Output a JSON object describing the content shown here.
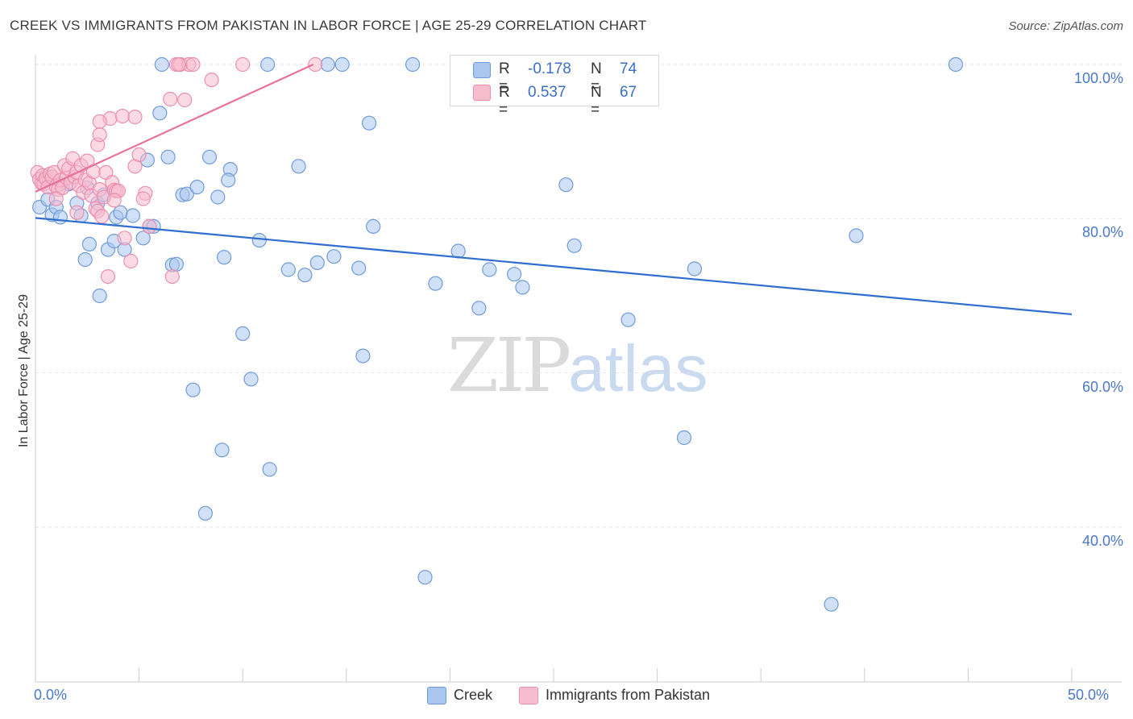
{
  "header": {
    "title": "CREEK VS IMMIGRANTS FROM PAKISTAN IN LABOR FORCE | AGE 25-29 CORRELATION CHART",
    "source": "Source: ZipAtlas.com"
  },
  "watermark": {
    "zip": "ZIP",
    "atlas": "atlas"
  },
  "legend": {
    "creek": {
      "r_label": "R =",
      "r_value": "-0.178",
      "n_label": "N =",
      "n_value": "74"
    },
    "pakistan": {
      "r_label": "R =",
      "r_value": "0.537",
      "n_label": "N =",
      "n_value": "67"
    }
  },
  "bottom_legend": {
    "creek": "Creek",
    "pakistan": "Immigrants from Pakistan"
  },
  "colors": {
    "creek_fill": "#a9c6ef",
    "creek_stroke": "#6f9bd9",
    "creek_line": "#2f6ecf",
    "pak_fill": "#f7bccd",
    "pak_stroke": "#ec8fae",
    "pak_line": "#e8709a",
    "grid": "#e4e4e4",
    "axis_text": "#4a78c8"
  },
  "chart_data": {
    "type": "scatter",
    "title": "CREEK VS IMMIGRANTS FROM PAKISTAN IN LABOR FORCE | AGE 25-29 CORRELATION CHART",
    "xlabel": "",
    "ylabel": "In Labor Force | Age 25-29",
    "xlim": [
      0,
      50
    ],
    "ylim": [
      20,
      102
    ],
    "x_ticks": [
      "0.0%",
      "50.0%"
    ],
    "y_ticks": [
      {
        "value": 100,
        "label": "100.0%"
      },
      {
        "value": 80,
        "label": "80.0%"
      },
      {
        "value": 60,
        "label": "60.0%"
      },
      {
        "value": 40,
        "label": "40.0%"
      }
    ],
    "series": [
      {
        "name": "Creek",
        "r": -0.178,
        "n": 74,
        "trend": {
          "x": [
            0,
            50
          ],
          "y": [
            80.1,
            67.6
          ]
        },
        "points": [
          [
            0.2,
            81.5
          ],
          [
            0.6,
            82.5
          ],
          [
            0.8,
            80.5
          ],
          [
            1.0,
            81.5
          ],
          [
            1.2,
            80.2
          ],
          [
            1.6,
            84.5
          ],
          [
            2.0,
            82.0
          ],
          [
            2.2,
            80.4
          ],
          [
            2.4,
            74.7
          ],
          [
            2.6,
            76.7
          ],
          [
            3.0,
            82.0
          ],
          [
            3.1,
            70.0
          ],
          [
            3.3,
            83.1
          ],
          [
            3.5,
            76.0
          ],
          [
            3.8,
            77.1
          ],
          [
            3.9,
            80.2
          ],
          [
            4.1,
            80.8
          ],
          [
            4.3,
            76.0
          ],
          [
            4.7,
            80.4
          ],
          [
            5.2,
            77.5
          ],
          [
            5.5,
            79.0
          ],
          [
            5.7,
            79.0
          ],
          [
            5.4,
            87.6
          ],
          [
            6.0,
            93.7
          ],
          [
            6.4,
            88.0
          ],
          [
            6.6,
            74.0
          ],
          [
            6.8,
            74.1
          ],
          [
            7.1,
            83.1
          ],
          [
            7.3,
            83.2
          ],
          [
            7.6,
            57.8
          ],
          [
            7.8,
            84.1
          ],
          [
            8.2,
            41.8
          ],
          [
            8.4,
            88.0
          ],
          [
            8.8,
            82.8
          ],
          [
            9.1,
            75.0
          ],
          [
            9.0,
            50.0
          ],
          [
            9.4,
            86.4
          ],
          [
            9.3,
            85.0
          ],
          [
            10.0,
            65.1
          ],
          [
            10.4,
            59.2
          ],
          [
            10.8,
            77.2
          ],
          [
            11.3,
            47.5
          ],
          [
            12.2,
            73.4
          ],
          [
            12.7,
            86.8
          ],
          [
            13.0,
            72.7
          ],
          [
            13.6,
            74.3
          ],
          [
            14.4,
            75.1
          ],
          [
            15.6,
            73.6
          ],
          [
            15.8,
            62.2
          ],
          [
            16.1,
            92.4
          ],
          [
            16.3,
            79.0
          ],
          [
            18.8,
            33.5
          ],
          [
            19.3,
            71.6
          ],
          [
            20.4,
            75.8
          ],
          [
            21.4,
            68.4
          ],
          [
            21.9,
            73.4
          ],
          [
            23.1,
            72.8
          ],
          [
            23.5,
            71.1
          ],
          [
            25.6,
            84.4
          ],
          [
            26.0,
            76.5
          ],
          [
            28.6,
            66.9
          ],
          [
            31.3,
            51.6
          ],
          [
            31.8,
            73.5
          ],
          [
            38.4,
            30.0
          ],
          [
            39.6,
            77.8
          ],
          [
            44.4,
            100.0
          ],
          [
            6.1,
            100.0
          ],
          [
            11.2,
            100.0
          ],
          [
            14.1,
            100.0
          ],
          [
            14.8,
            100.0
          ],
          [
            18.2,
            100.0
          ],
          [
            1.2,
            84.5
          ],
          [
            2.5,
            84.0
          ],
          [
            0.5,
            85.5
          ]
        ]
      },
      {
        "name": "Immigrants from Pakistan",
        "r": 0.537,
        "n": 67,
        "trend": {
          "x": [
            0,
            13.4
          ],
          "y": [
            83.5,
            100.0
          ]
        },
        "points": [
          [
            0.1,
            86.0
          ],
          [
            0.2,
            85.1
          ],
          [
            0.3,
            84.6
          ],
          [
            0.35,
            85.6
          ],
          [
            0.4,
            84.5
          ],
          [
            0.5,
            85.2
          ],
          [
            0.6,
            84.1
          ],
          [
            0.7,
            85.8
          ],
          [
            0.8,
            85.4
          ],
          [
            0.9,
            86.0
          ],
          [
            1.0,
            84.2
          ],
          [
            1.1,
            83.8
          ],
          [
            1.2,
            85.0
          ],
          [
            1.3,
            84.0
          ],
          [
            1.4,
            86.9
          ],
          [
            1.5,
            85.3
          ],
          [
            1.6,
            86.5
          ],
          [
            1.7,
            84.7
          ],
          [
            1.8,
            87.8
          ],
          [
            1.9,
            85.4
          ],
          [
            2.0,
            86.0
          ],
          [
            2.1,
            84.3
          ],
          [
            2.2,
            86.9
          ],
          [
            2.3,
            83.4
          ],
          [
            2.4,
            85.0
          ],
          [
            2.5,
            87.5
          ],
          [
            2.6,
            84.6
          ],
          [
            2.7,
            83.0
          ],
          [
            2.8,
            86.1
          ],
          [
            2.9,
            81.3
          ],
          [
            3.0,
            81.0
          ],
          [
            3.1,
            83.8
          ],
          [
            3.2,
            80.3
          ],
          [
            3.3,
            82.8
          ],
          [
            3.4,
            86.0
          ],
          [
            3.5,
            72.5
          ],
          [
            3.6,
            93.0
          ],
          [
            3.7,
            84.7
          ],
          [
            3.8,
            83.7
          ],
          [
            3.9,
            83.6
          ],
          [
            4.2,
            93.3
          ],
          [
            4.3,
            77.5
          ],
          [
            4.6,
            74.5
          ],
          [
            4.8,
            86.8
          ],
          [
            5.0,
            88.3
          ],
          [
            5.3,
            83.3
          ],
          [
            5.5,
            79.0
          ],
          [
            6.5,
            95.5
          ],
          [
            6.6,
            72.5
          ],
          [
            6.8,
            100.0
          ],
          [
            7.0,
            100.0
          ],
          [
            7.2,
            95.4
          ],
          [
            7.4,
            100.0
          ],
          [
            7.6,
            100.0
          ],
          [
            8.5,
            98.0
          ],
          [
            10.0,
            100.0
          ],
          [
            13.5,
            100.0
          ],
          [
            3.0,
            89.6
          ],
          [
            3.1,
            90.9
          ],
          [
            3.1,
            92.6
          ],
          [
            1.0,
            82.6
          ],
          [
            2.0,
            80.8
          ],
          [
            4.0,
            83.6
          ],
          [
            4.8,
            93.2
          ],
          [
            5.2,
            82.6
          ],
          [
            3.8,
            82.4
          ],
          [
            6.9,
            100.0
          ]
        ]
      }
    ]
  }
}
